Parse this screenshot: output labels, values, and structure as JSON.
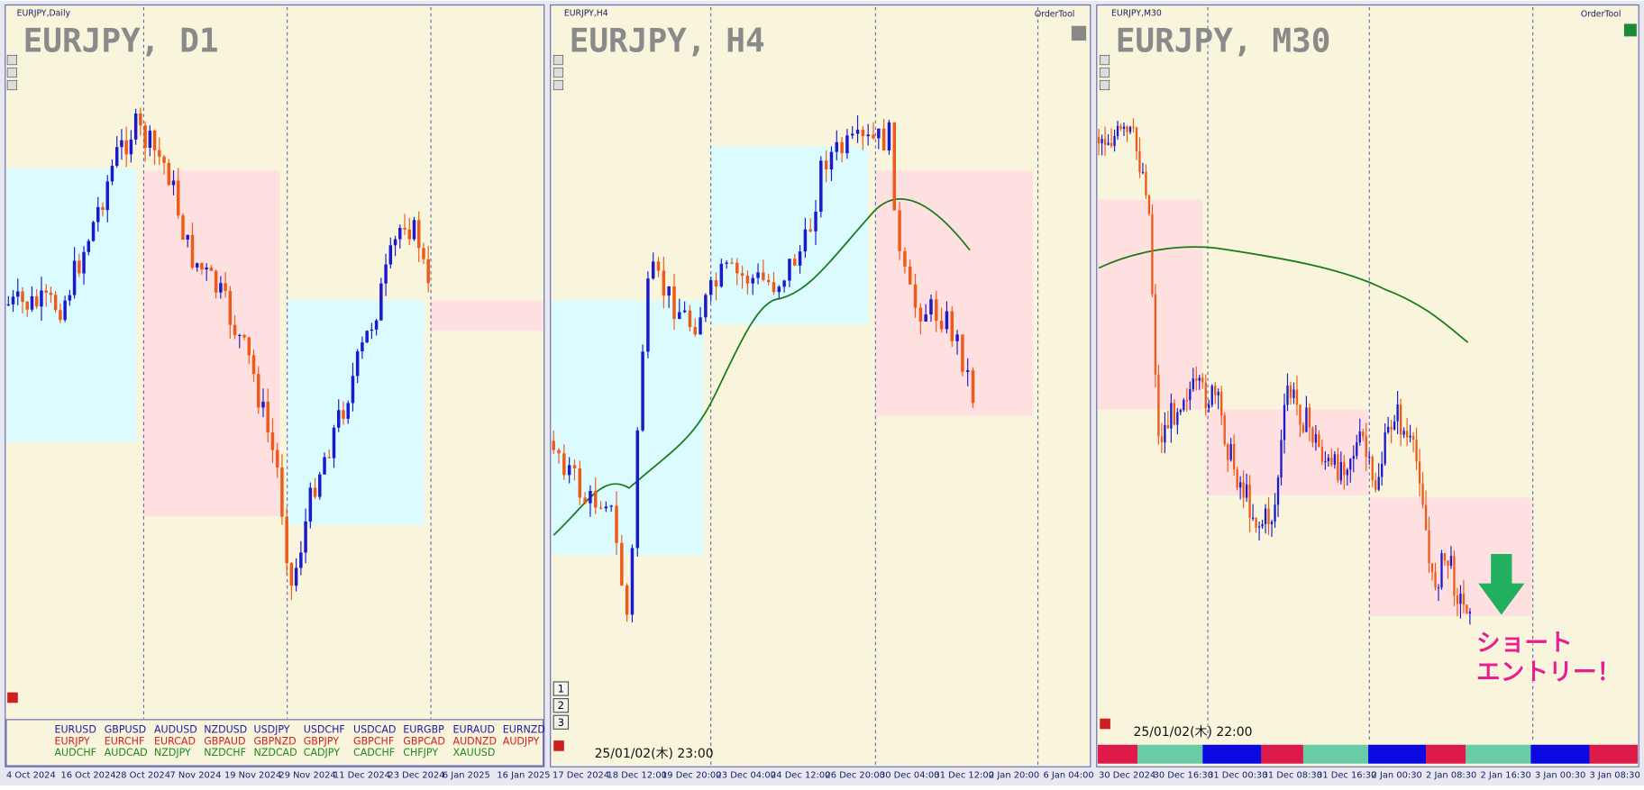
{
  "panels": [
    {
      "window_title": "EURJPY,Daily",
      "symbol_label": "EURJPY, D1",
      "time_labels": [
        "4 Oct 2024",
        "16 Oct 2024",
        "28 Oct 2024",
        "7 Nov 2024",
        "19 Nov 2024",
        "29 Nov 2024",
        "11 Dec 2024",
        "23 Dec 2024",
        "6 Jan 2025",
        "16 Jan 2025"
      ],
      "currency_table": [
        {
          "color": "#1a1aa8",
          "symbols": [
            "EURUSD",
            "GBPUSD",
            "AUDUSD",
            "NZDUSD",
            "USDJPY",
            "USDCHF",
            "USDCAD",
            "EURGBP",
            "EURAUD",
            "EURNZD"
          ]
        },
        {
          "color": "#d02020",
          "symbols": [
            "EURJPY",
            "EURCHF",
            "EURCAD",
            "GBPAUD",
            "GBPNZD",
            "GBPJPY",
            "GBPCHF",
            "GBPCAD",
            "AUDNZD",
            "AUDJPY"
          ]
        },
        {
          "color": "#1a8a1a",
          "symbols": [
            "AUDCHF",
            "AUDCAD",
            "NZDJPY",
            "NZDCHF",
            "NZDCAD",
            "CADJPY",
            "CADCHF",
            "CHFJPY",
            "XAUUSD"
          ]
        }
      ]
    },
    {
      "window_title": "EURJPY,H4",
      "symbol_label": "EURJPY, H4",
      "order_tool": "OrderTool",
      "time_labels": [
        "17 Dec 2024",
        "18 Dec 12:00",
        "19 Dec 20:00",
        "23 Dec 04:00",
        "24 Dec 12:00",
        "26 Dec 20:00",
        "30 Dec 04:00",
        "31 Dec 12:00",
        "2 Jan 20:00",
        "6 Jan 04:00"
      ],
      "buttons": [
        "1",
        "2",
        "3"
      ],
      "timestamp": "25/01/02(木) 23:00"
    },
    {
      "window_title": "EURJPY,M30",
      "symbol_label": "EURJPY, M30",
      "order_tool": "OrderTool",
      "time_labels": [
        "30 Dec 2024",
        "30 Dec 16:30",
        "31 Dec 00:30",
        "31 Dec 08:30",
        "31 Dec 16:30",
        "2 Jan 00:30",
        "2 Jan 08:30",
        "2 Jan 16:30",
        "3 Jan 00:30",
        "3 Jan 08:30"
      ],
      "timestamp": "25/01/02(木) 22:00",
      "annotation": [
        "ショート",
        "エントリー！"
      ]
    }
  ]
}
